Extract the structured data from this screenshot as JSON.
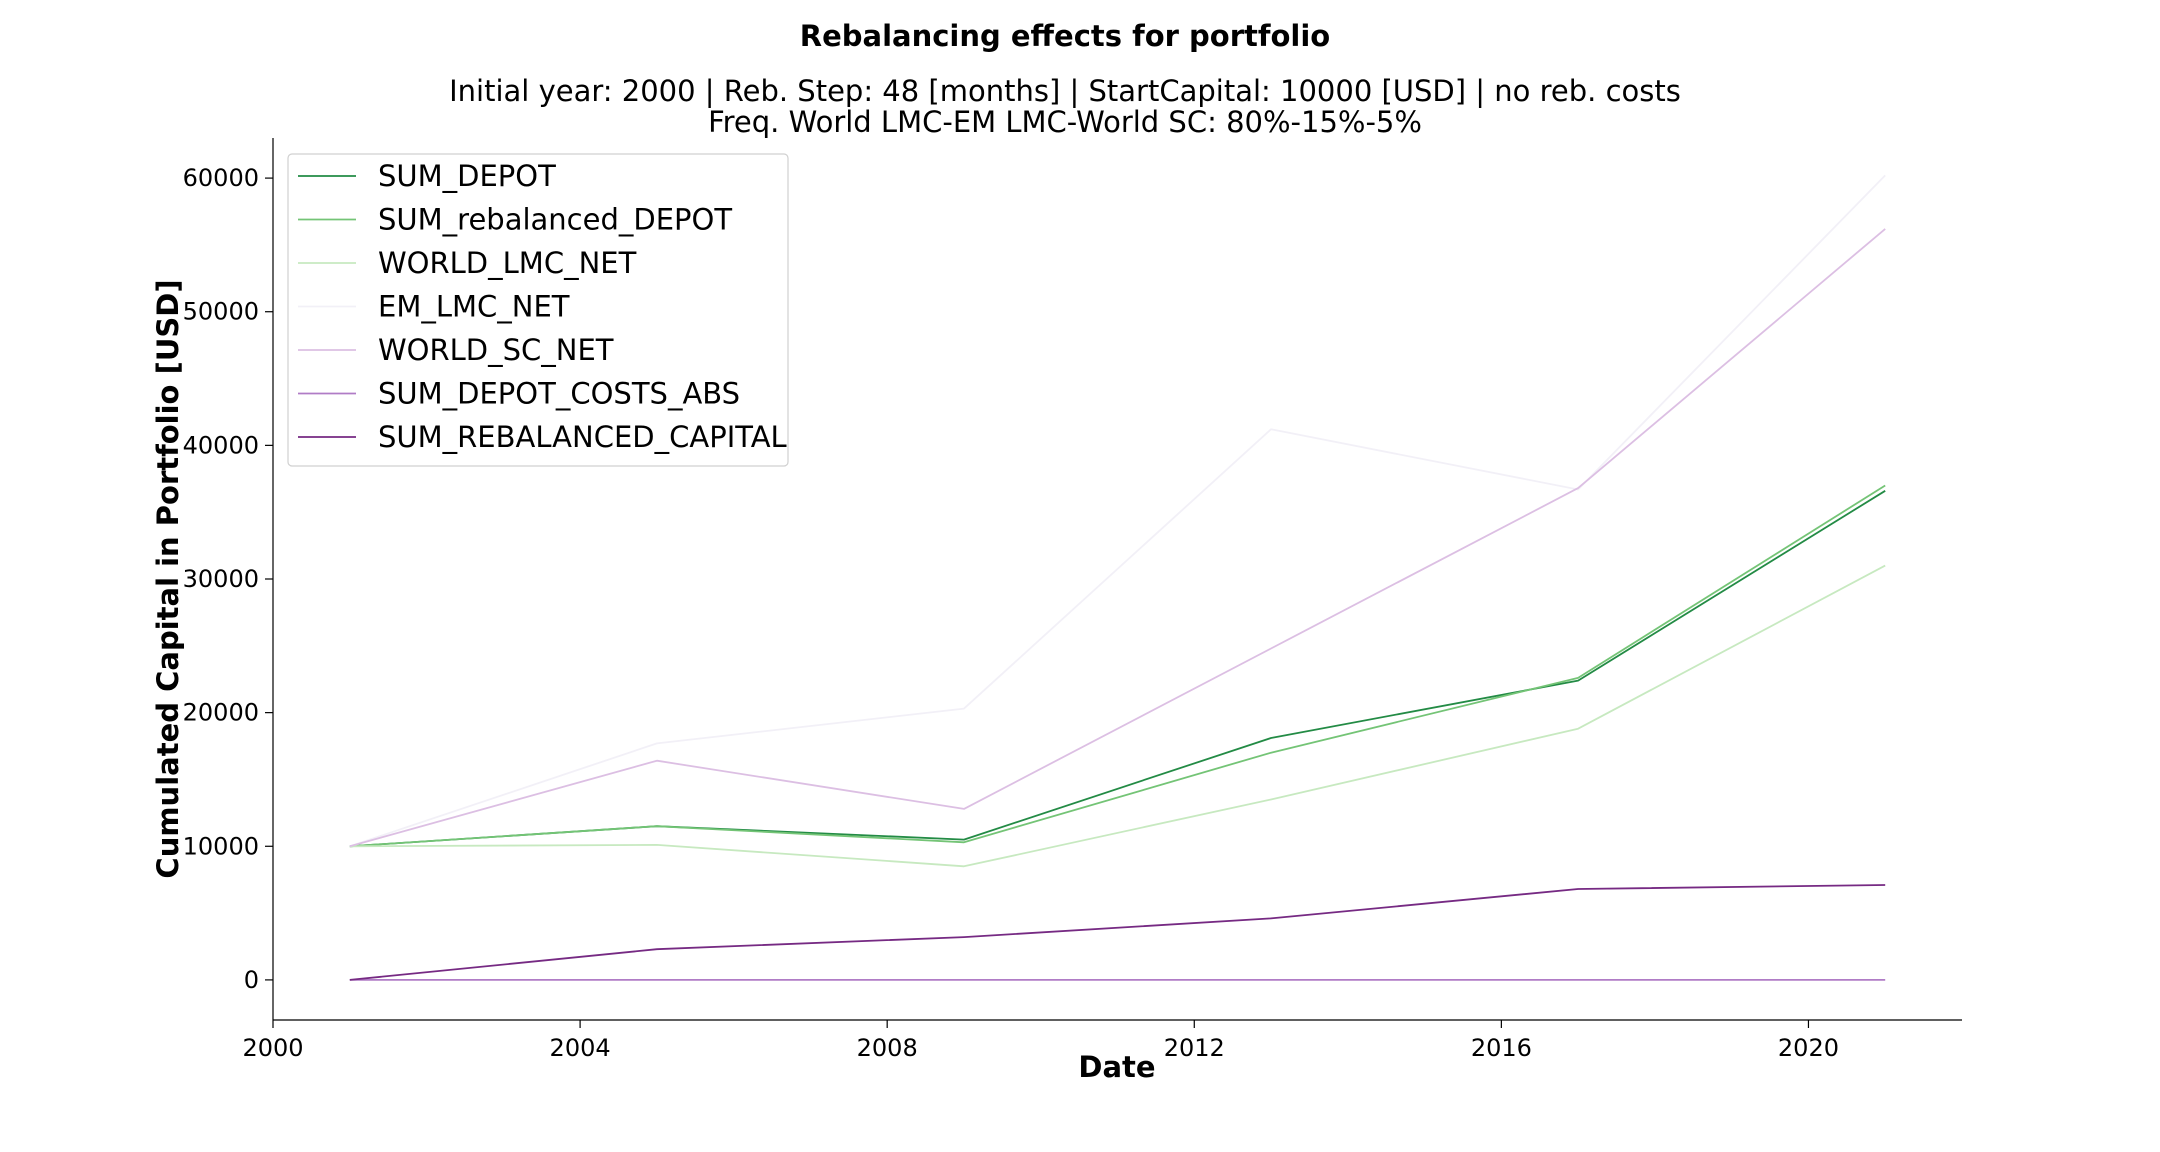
{
  "chart_data": {
    "type": "line",
    "title": "Rebalancing effects for portfolio",
    "subtitle_lines": [
      "Initial year: 2000 | Reb. Step: 48 [months] | StartCapital: 10000 [USD] | no reb. costs",
      "Freq. World LMC-EM LMC-World SC: 80%-15%-5%"
    ],
    "xlabel": "Date",
    "ylabel": "Cumulated Capital in Portfolio [USD]",
    "xlim": [
      2000,
      2022
    ],
    "ylim": [
      -3000,
      63000
    ],
    "x_ticks": [
      "2000",
      "2004",
      "2008",
      "2012",
      "2016",
      "2020"
    ],
    "y_ticks": [
      "0",
      "10000",
      "20000",
      "30000",
      "40000",
      "50000",
      "60000"
    ],
    "x": [
      2001,
      2005,
      2009,
      2013,
      2017,
      2021
    ],
    "grid": false,
    "legend_position": "upper-left",
    "series": [
      {
        "name": "SUM_DEPOT",
        "color": "#238b45",
        "values": [
          10000,
          11500,
          10500,
          18100,
          22400,
          36600
        ]
      },
      {
        "name": "SUM_rebalanced_DEPOT",
        "color": "#74c476",
        "values": [
          10000,
          11500,
          10300,
          17000,
          22600,
          37000
        ]
      },
      {
        "name": "WORLD_LMC_NET",
        "color": "#c7e9c0",
        "values": [
          10000,
          10100,
          8500,
          13500,
          18800,
          31000
        ]
      },
      {
        "name": "EM_LMC_NET",
        "color": "#f2f0f7",
        "values": [
          10000,
          17700,
          20300,
          41200,
          36700,
          60200
        ]
      },
      {
        "name": "WORLD_SC_NET",
        "color": "#dcbfe3",
        "values": [
          10000,
          16400,
          12800,
          24800,
          36800,
          56200
        ]
      },
      {
        "name": "SUM_DEPOT_COSTS_ABS",
        "color": "#b07cc6",
        "values": [
          0,
          0,
          0,
          0,
          0,
          0
        ]
      },
      {
        "name": "SUM_REBALANCED_CAPITAL",
        "color": "#762a83",
        "values": [
          0,
          2300,
          3200,
          4600,
          6800,
          7100
        ]
      }
    ]
  }
}
